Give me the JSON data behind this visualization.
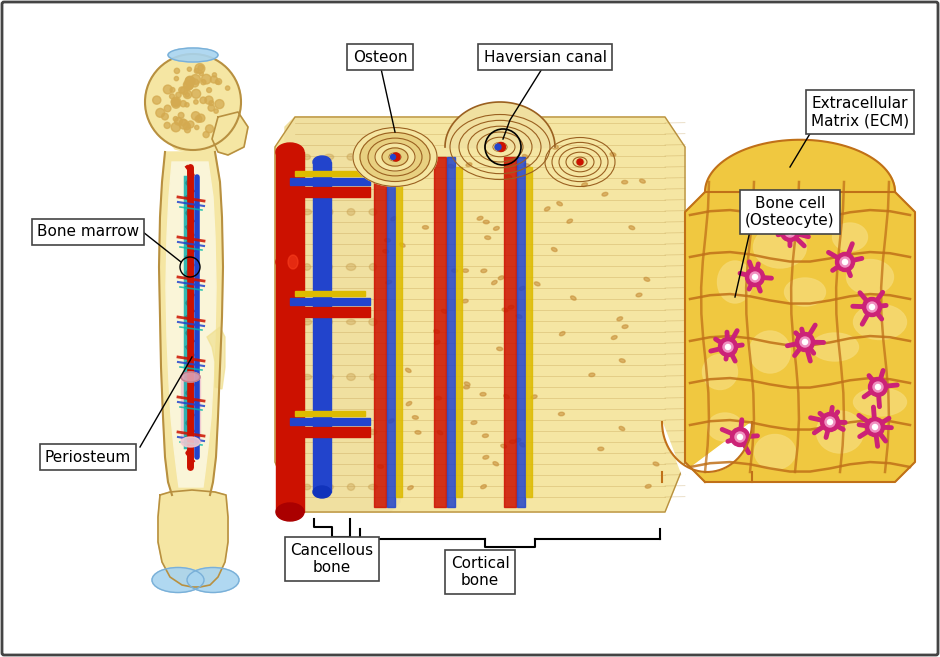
{
  "background_color": "#ffffff",
  "border_color": "#444444",
  "bone_color": "#f5e6a3",
  "bone_light": "#faf5d8",
  "bone_dark": "#d4aa50",
  "bone_outline": "#b89040",
  "cartilage_color": "#a8d4f0",
  "cartilage_dark": "#7ab0d8",
  "pink_marrow": "#f0c8d0",
  "red_vessel": "#cc1100",
  "blue_vessel": "#2244cc",
  "yellow_vessel": "#ddbb00",
  "pink_cell": "#cc2277",
  "pink_cell_light": "#f070a0",
  "ecm_bg": "#f0c840",
  "ecm_cell": "#f5d870",
  "ecm_outline": "#c07018",
  "lacuna_color": "#c8903a",
  "spongy_color": "#c8a050",
  "label_fontsize": 11,
  "labels": {
    "bone_marrow": "Bone marrow",
    "periosteum": "Periosteum",
    "osteon": "Osteon",
    "haversian": "Haversian canal",
    "cancellous": "Cancellous\nbone",
    "cortical": "Cortical\nbone",
    "bone_cell": "Bone cell\n(Osteocyte)",
    "ecm": "Extracellular\nMatrix (ECM)"
  }
}
